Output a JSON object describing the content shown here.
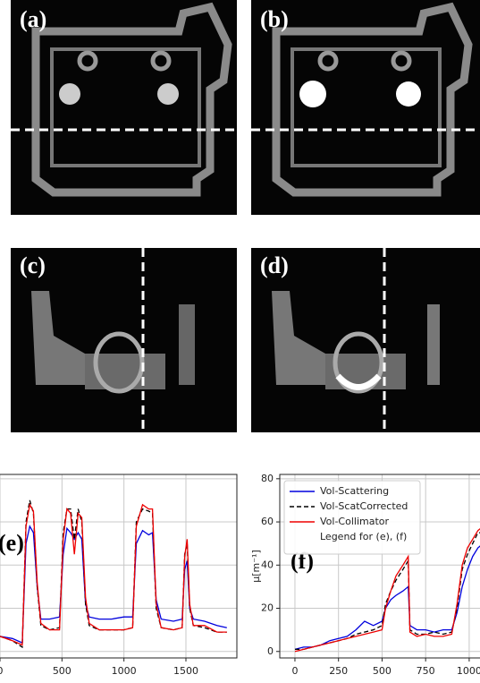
{
  "panels": [
    {
      "label": "(a)"
    },
    {
      "label": "(b)"
    },
    {
      "label": "(c)"
    },
    {
      "label": "(d)"
    }
  ],
  "chart_data": [
    {
      "type": "line",
      "label": "(e)",
      "x": [
        0,
        100,
        180,
        210,
        240,
        270,
        300,
        330,
        400,
        480,
        510,
        540,
        570,
        600,
        630,
        660,
        690,
        720,
        800,
        900,
        1000,
        1070,
        1100,
        1150,
        1200,
        1230,
        1260,
        1300,
        1400,
        1470,
        1490,
        1510,
        1530,
        1560,
        1650,
        1750,
        1830
      ],
      "series": [
        {
          "name": "Vol-Scattering",
          "color": "#0000dd",
          "dash": false,
          "values": [
            7,
            6,
            4,
            50,
            58,
            55,
            30,
            15,
            15,
            16,
            45,
            57,
            55,
            52,
            55,
            52,
            22,
            16,
            15,
            15,
            16,
            16,
            50,
            56,
            54,
            55,
            24,
            15,
            14,
            15,
            38,
            42,
            20,
            15,
            14,
            12,
            11
          ]
        },
        {
          "name": "Vol-ScatCorrected",
          "color": "#000000",
          "dash": true,
          "values": [
            7,
            5,
            2,
            60,
            70,
            64,
            30,
            12,
            10,
            11,
            55,
            66,
            66,
            52,
            66,
            60,
            22,
            12,
            10,
            10,
            10,
            11,
            60,
            66,
            65,
            64,
            20,
            11,
            10,
            11,
            45,
            50,
            20,
            12,
            11,
            9,
            9
          ]
        },
        {
          "name": "Vol-Collimator",
          "color": "#ee0000",
          "dash": false,
          "values": [
            7,
            5,
            3,
            58,
            68,
            65,
            32,
            13,
            10,
            10,
            52,
            66,
            64,
            45,
            64,
            62,
            25,
            13,
            10,
            10,
            10,
            11,
            58,
            68,
            66,
            66,
            22,
            11,
            10,
            11,
            44,
            52,
            22,
            12,
            12,
            9,
            9
          ]
        }
      ],
      "xlim": [
        -72,
        1911
      ],
      "xticks": [
        0,
        500,
        1000,
        1500
      ],
      "ylim": [
        -3,
        82
      ],
      "yticks": [
        0,
        20,
        40,
        60,
        80
      ],
      "grid": true
    },
    {
      "type": "line",
      "label": "(f)",
      "y_label": "μ[m⁻¹]",
      "x": [
        0,
        50,
        100,
        150,
        200,
        250,
        300,
        350,
        400,
        450,
        500,
        520,
        550,
        580,
        620,
        650,
        660,
        700,
        750,
        800,
        850,
        900,
        930,
        960,
        990,
        1020,
        1050,
        1080,
        1100
      ],
      "series": [
        {
          "name": "Vol-Scattering",
          "color": "#0000dd",
          "dash": false,
          "values": [
            1,
            2,
            2,
            3,
            5,
            6,
            7,
            10,
            14,
            12,
            14,
            20,
            24,
            26,
            28,
            30,
            12,
            10,
            10,
            9,
            10,
            10,
            18,
            30,
            38,
            44,
            48,
            50,
            35
          ]
        },
        {
          "name": "Vol-ScatCorrected",
          "color": "#000000",
          "dash": true,
          "values": [
            1,
            1,
            2,
            3,
            4,
            5,
            6,
            8,
            9,
            10,
            12,
            22,
            28,
            33,
            38,
            42,
            10,
            8,
            8,
            9,
            8,
            9,
            20,
            38,
            45,
            50,
            55,
            55,
            35
          ]
        },
        {
          "name": "Vol-Collimator",
          "color": "#ee0000",
          "dash": false,
          "values": [
            0,
            1,
            2,
            3,
            4,
            5,
            6,
            7,
            8,
            9,
            10,
            20,
            28,
            35,
            40,
            44,
            9,
            7,
            8,
            7,
            7,
            8,
            22,
            40,
            48,
            52,
            56,
            58,
            30
          ]
        }
      ],
      "legend_note": "Legend for (e), (f)",
      "xlim": [
        -87,
        1180
      ],
      "xticks": [
        0,
        250,
        500,
        750,
        1000
      ],
      "ylim": [
        -3,
        82
      ],
      "yticks": [
        0,
        20,
        40,
        60,
        80
      ],
      "grid": true
    }
  ]
}
